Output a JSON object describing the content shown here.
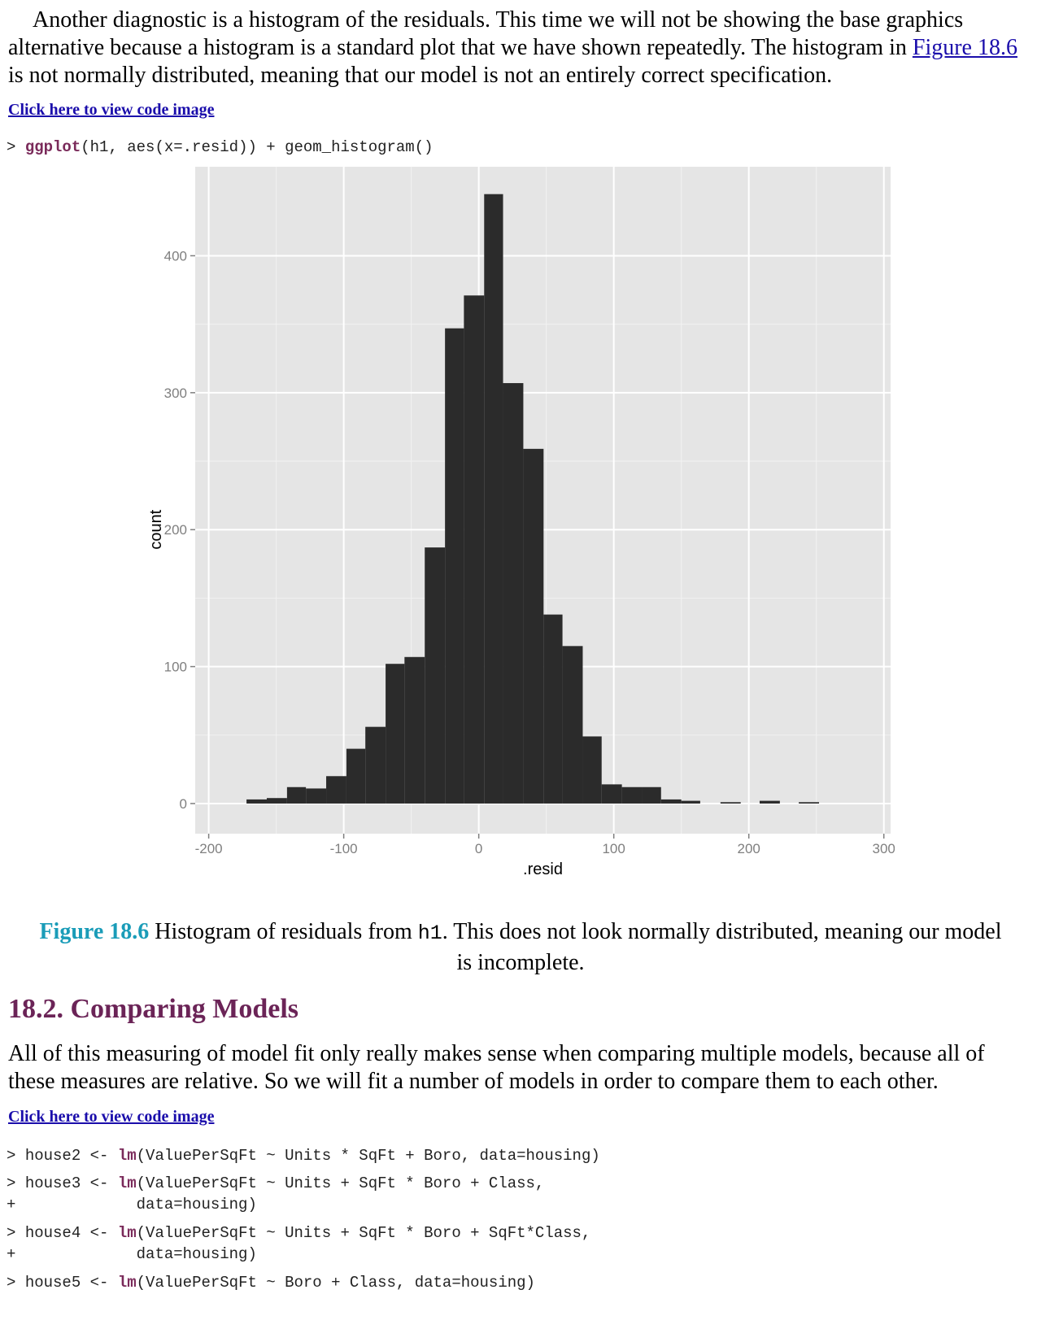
{
  "intro_paragraph": {
    "text_before": "Another diagnostic is a histogram of the residuals. This time we will not be showing the base graphics alternative because a histogram is a standard plot that we have shown repeatedly. The histogram in ",
    "link_text": "Figure 18.6",
    "text_after": " is not normally distributed, meaning that our model is not an entirely correct specification."
  },
  "code_link_1": "Click here to view code image",
  "code_block_1": {
    "prompt": "> ",
    "fn": "ggplot",
    "rest": "(h1, aes(x=.resid)) + geom_histogram()"
  },
  "chart_data": {
    "type": "bar",
    "xlabel": ".resid",
    "ylabel": "count",
    "xlim": [
      -210,
      305
    ],
    "ylim": [
      -22,
      465
    ],
    "x_ticks": [
      -200,
      -100,
      0,
      100,
      200,
      300
    ],
    "y_ticks": [
      0,
      100,
      200,
      300,
      400
    ],
    "grid": true,
    "bin_edges": [
      -172,
      -157,
      -142,
      -128,
      -113,
      -98,
      -84,
      -69,
      -55,
      -40,
      -25,
      -11,
      4,
      18,
      33,
      48,
      62,
      77,
      91,
      106,
      121,
      135,
      150,
      164,
      179,
      194,
      208,
      223,
      237,
      252,
      267,
      281
    ],
    "values": [
      3,
      4,
      12,
      11,
      20,
      40,
      56,
      102,
      107,
      187,
      347,
      371,
      445,
      307,
      259,
      138,
      115,
      49,
      14,
      12,
      12,
      3,
      2,
      0,
      1,
      0,
      2,
      0,
      1,
      0,
      0
    ]
  },
  "caption": {
    "label": "Figure 18.6",
    "text_before": " Histogram of residuals from ",
    "code": "h1",
    "text_after": ". This does not look normally distributed, meaning our model is incomplete."
  },
  "section": {
    "heading": "18.2. Comparing Models",
    "paragraph": "All of this measuring of model fit only really makes sense when comparing multiple models, because all of these measures are relative. So we will fit a number of models in order to compare them to each other."
  },
  "code_link_2": "Click here to view code image",
  "code_block_2": [
    {
      "prompt": "> ",
      "lhs": "house2 <- ",
      "fn": "lm",
      "rest": "(ValuePerSqFt ~ Units * SqFt + Boro, data=housing)"
    },
    {
      "prompt": "> ",
      "lhs": "house3 <- ",
      "fn": "lm",
      "rest": "(ValuePerSqFt ~ Units + SqFt * Boro + Class,"
    },
    {
      "prompt": "+ ",
      "lhs": "",
      "fn": "",
      "rest": "            data=housing)"
    },
    {
      "prompt": "> ",
      "lhs": "house4 <- ",
      "fn": "lm",
      "rest": "(ValuePerSqFt ~ Units + SqFt * Boro + SqFt*Class,"
    },
    {
      "prompt": "+ ",
      "lhs": "",
      "fn": "",
      "rest": "            data=housing)"
    },
    {
      "prompt": "> ",
      "lhs": "house5 <- ",
      "fn": "lm",
      "rest": "(ValuePerSqFt ~ Boro + Class, data=housing)"
    }
  ]
}
